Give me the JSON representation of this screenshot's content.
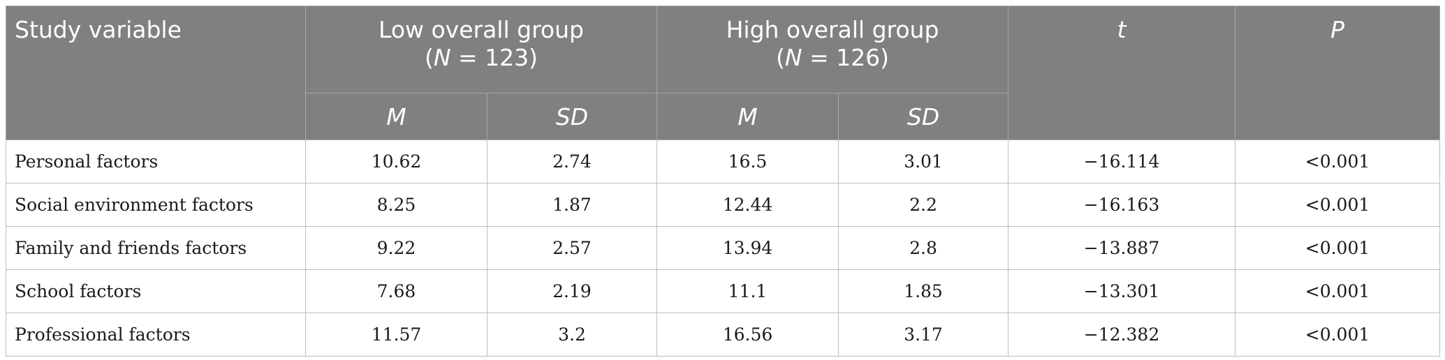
{
  "header": {
    "study_variable": "Study variable",
    "low_group_label": "Low overall group",
    "low_group_n_prefix": "(",
    "low_group_n_var": "N",
    "low_group_n_value": " = 123)",
    "high_group_label": "High overall group",
    "high_group_n_prefix": "(",
    "high_group_n_var": "N",
    "high_group_n_value": " = 126)",
    "t_label": "t",
    "p_label": "P",
    "m_label": "M",
    "sd_label": "SD"
  },
  "rows": [
    {
      "variable": "Personal factors",
      "low_m": "10.62",
      "low_sd": "2.74",
      "high_m": "16.5",
      "high_sd": "3.01",
      "t": "−16.114",
      "p": "<0.001"
    },
    {
      "variable": "Social environment factors",
      "low_m": "8.25",
      "low_sd": "1.87",
      "high_m": "12.44",
      "high_sd": "2.2",
      "t": "−16.163",
      "p": "<0.001"
    },
    {
      "variable": "Family and friends factors",
      "low_m": "9.22",
      "low_sd": "2.57",
      "high_m": "13.94",
      "high_sd": "2.8",
      "t": "−13.887",
      "p": "<0.001"
    },
    {
      "variable": "School factors",
      "low_m": "7.68",
      "low_sd": "2.19",
      "high_m": "11.1",
      "high_sd": "1.85",
      "t": "−13.301",
      "p": "<0.001"
    },
    {
      "variable": "Professional factors",
      "low_m": "11.57",
      "low_sd": "3.2",
      "high_m": "16.56",
      "high_sd": "3.17",
      "t": "−12.382",
      "p": "<0.001"
    }
  ]
}
